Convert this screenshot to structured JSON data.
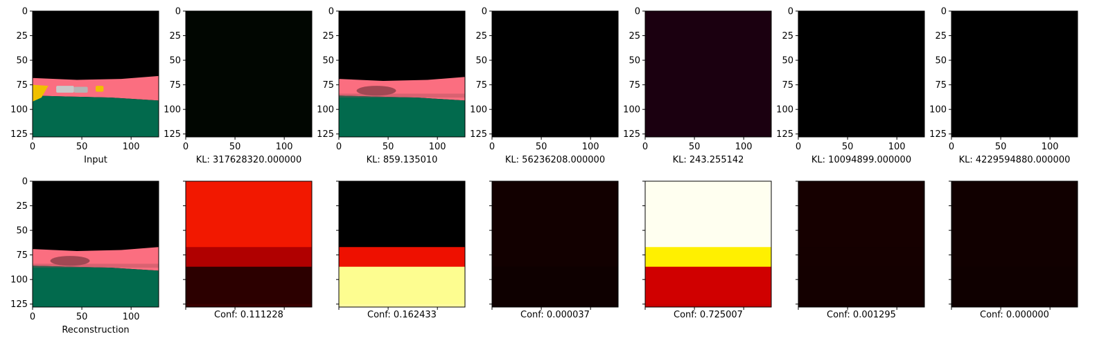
{
  "chart_data": {
    "type": "image-grid",
    "image_size": [
      128,
      128
    ],
    "x_ticks": [
      0,
      50,
      100
    ],
    "y_ticks": [
      0,
      25,
      50,
      75,
      100,
      125
    ],
    "row1": [
      {
        "kind": "scene_input",
        "caption": "Input"
      },
      {
        "kind": "dark",
        "fill": "#010601",
        "caption": "KL: 317628320.000000"
      },
      {
        "kind": "scene_blur",
        "caption": "KL: 859.135010"
      },
      {
        "kind": "dark",
        "fill": "#000000",
        "caption": "KL: 56236208.000000"
      },
      {
        "kind": "dark",
        "fill": "#1b0010",
        "caption": "KL: 243.255142"
      },
      {
        "kind": "dark",
        "fill": "#000000",
        "caption": "KL: 10094899.000000"
      },
      {
        "kind": "dark",
        "fill": "#000000",
        "caption": "KL: 4229594880.000000"
      }
    ],
    "row2": [
      {
        "kind": "scene_blur",
        "caption": "Reconstruction",
        "axes_labels": true
      },
      {
        "kind": "heat",
        "colors": [
          "#f21800",
          "#b00000",
          "#2c0000",
          "#3a0000"
        ],
        "caption": "Conf: 0.111228"
      },
      {
        "kind": "heat",
        "colors": [
          "#000000",
          "#ee1000",
          "#fdfd90",
          "#fffca0"
        ],
        "caption": "Conf: 0.162433"
      },
      {
        "kind": "heat",
        "colors": [
          "#120000",
          "#120000",
          "#0e0000",
          "#0e0000"
        ],
        "caption": "Conf: 0.000037"
      },
      {
        "kind": "heat",
        "colors": [
          "#fffff0",
          "#fff000",
          "#d00000",
          "#c80000"
        ],
        "caption": "Conf: 0.725007"
      },
      {
        "kind": "heat",
        "colors": [
          "#160000",
          "#150000",
          "#140000",
          "#140000"
        ],
        "caption": "Conf: 0.001295"
      },
      {
        "kind": "heat",
        "colors": [
          "#110000",
          "#110000",
          "#0f0000",
          "#0f0000"
        ],
        "caption": "Conf: 0.000000"
      }
    ],
    "colors": {
      "sky": "#000000",
      "road": "#fb6e80",
      "grass": "#026a4d",
      "car": "#c8c8c8",
      "sign": "#f0c000"
    }
  }
}
